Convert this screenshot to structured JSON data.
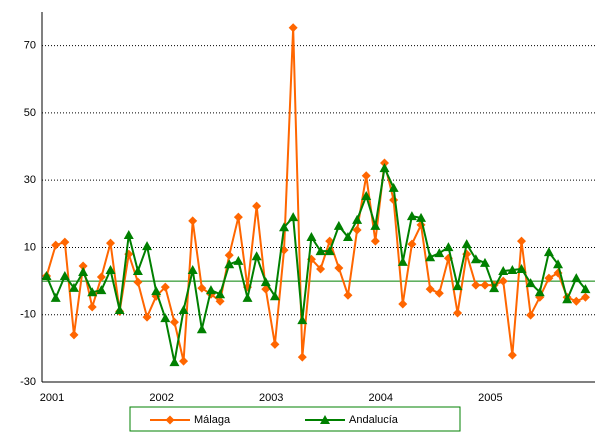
{
  "chart_data": {
    "type": "line",
    "categories": [
      "2001",
      null,
      null,
      null,
      null,
      null,
      null,
      null,
      null,
      null,
      null,
      null,
      "2002",
      null,
      null,
      null,
      null,
      null,
      null,
      null,
      null,
      null,
      null,
      null,
      "2003",
      null,
      null,
      null,
      null,
      null,
      null,
      null,
      null,
      null,
      null,
      null,
      "2004",
      null,
      null,
      null,
      null,
      null,
      null,
      null,
      null,
      null,
      null,
      null,
      "2005",
      null,
      null,
      null,
      null,
      null,
      null,
      null,
      null,
      null,
      null,
      null
    ],
    "series": [
      {
        "name": "Málaga",
        "color": "#ff6600",
        "marker": "diamond",
        "values": [
          1.5,
          10.7,
          11.6,
          -16,
          4.5,
          -7.7,
          1.2,
          11.3,
          -9,
          8,
          -0.3,
          -10.7,
          -4.5,
          -1.8,
          -12.2,
          -23.8,
          17.9,
          -2.1,
          -3.9,
          -6,
          7.7,
          19,
          -1.8,
          22.3,
          -2.4,
          -18.8,
          9.2,
          75.3,
          -22.6,
          6.5,
          3.6,
          11.9,
          3.9,
          -4.2,
          15.2,
          31.3,
          11.9,
          35.1,
          24.1,
          -6.8,
          11,
          16.7,
          -2.4,
          -3.6,
          6.8,
          -9.5,
          8,
          -1.2,
          -1.2,
          -1.2,
          0,
          -22,
          11.9,
          -10.1,
          -4.8,
          0.9,
          2.4,
          -4.8,
          -6,
          -4.8
        ]
      },
      {
        "name": "Andalucía",
        "color": "#008000",
        "marker": "triangle",
        "values": [
          1.5,
          -5,
          1.5,
          -2,
          2.7,
          -3.3,
          -2.7,
          3.3,
          -8.6,
          13.7,
          3,
          10.4,
          -3,
          -11,
          -24.1,
          -8.6,
          3.3,
          -14.3,
          -2.7,
          -3.9,
          5,
          6,
          -5,
          7.4,
          -0.3,
          -4.5,
          16,
          19,
          -11.6,
          13.1,
          8.9,
          8.9,
          16.4,
          13.1,
          18.2,
          25.3,
          16.4,
          33.6,
          27.7,
          5.7,
          19.3,
          18.8,
          7.1,
          8.3,
          10.1,
          -1.5,
          11,
          6.5,
          5.4,
          -2.1,
          3,
          3.3,
          3.6,
          -0.6,
          -3.3,
          8.6,
          5,
          -5.4,
          0.9,
          -2.4
        ]
      }
    ],
    "ylim": [
      -30,
      80
    ],
    "yticks": [
      -30,
      -10,
      10,
      30,
      50,
      70
    ],
    "grid": true,
    "legend": "bottom"
  }
}
